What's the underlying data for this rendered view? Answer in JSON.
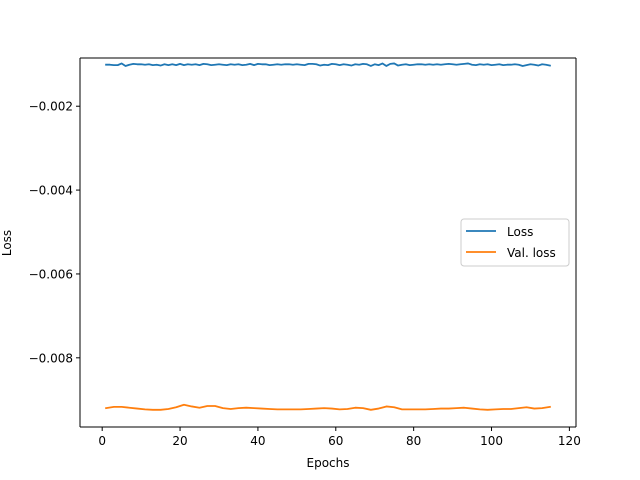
{
  "chart_data": {
    "type": "line",
    "title": "",
    "xlabel": "Epochs",
    "ylabel": "Loss",
    "xlim": [
      -5.7,
      121.7
    ],
    "ylim": [
      -0.00965,
      -0.00085
    ],
    "xticks": [
      0,
      20,
      40,
      60,
      80,
      100,
      120
    ],
    "xtick_labels": [
      "0",
      "20",
      "40",
      "60",
      "80",
      "100",
      "120"
    ],
    "yticks": [
      -0.002,
      -0.004,
      -0.006,
      -0.008
    ],
    "ytick_labels": [
      "−0.002",
      "−0.004",
      "−0.006",
      "−0.008"
    ],
    "grid": false,
    "legend_position": "center-right",
    "series": [
      {
        "name": "Loss",
        "color": "#1f77b4",
        "x": [
          1,
          2,
          3,
          4,
          5,
          6,
          7,
          8,
          9,
          10,
          11,
          12,
          13,
          14,
          15,
          16,
          17,
          18,
          19,
          20,
          21,
          22,
          23,
          24,
          25,
          26,
          27,
          28,
          29,
          30,
          31,
          32,
          33,
          34,
          35,
          36,
          37,
          38,
          39,
          40,
          41,
          42,
          43,
          44,
          45,
          46,
          47,
          48,
          49,
          50,
          51,
          52,
          53,
          54,
          55,
          56,
          57,
          58,
          59,
          60,
          61,
          62,
          63,
          64,
          65,
          66,
          67,
          68,
          69,
          70,
          71,
          72,
          73,
          74,
          75,
          76,
          77,
          78,
          79,
          80,
          81,
          82,
          83,
          84,
          85,
          86,
          87,
          88,
          89,
          90,
          91,
          92,
          93,
          94,
          95,
          96,
          97,
          98,
          99,
          100,
          101,
          102,
          103,
          104,
          105,
          106,
          107,
          108,
          109,
          110,
          111,
          112,
          113,
          114,
          115
        ],
        "y": [
          -0.00101,
          -0.00101,
          -0.00102,
          -0.00102,
          -0.00098,
          -0.00104,
          -0.00101,
          -0.00099,
          -0.001,
          -0.001,
          -0.00101,
          -0.001,
          -0.00102,
          -0.00101,
          -0.00103,
          -0.001,
          -0.00102,
          -0.001,
          -0.00102,
          -0.00099,
          -0.00102,
          -0.001,
          -0.00101,
          -0.001,
          -0.00102,
          -0.00099,
          -0.001,
          -0.00102,
          -0.00101,
          -0.001,
          -0.00101,
          -0.00102,
          -0.001,
          -0.00101,
          -0.001,
          -0.00102,
          -0.00101,
          -0.00099,
          -0.00102,
          -0.00099,
          -0.001,
          -0.001,
          -0.00102,
          -0.00101,
          -0.001,
          -0.00101,
          -0.001,
          -0.001,
          -0.00101,
          -0.001,
          -0.00101,
          -0.00102,
          -0.00099,
          -0.00099,
          -0.001,
          -0.00103,
          -0.00101,
          -0.00102,
          -0.00099,
          -0.001,
          -0.00102,
          -0.001,
          -0.00101,
          -0.00103,
          -0.001,
          -0.00101,
          -0.00099,
          -0.001,
          -0.00104,
          -0.001,
          -0.00102,
          -0.00098,
          -0.00104,
          -0.00099,
          -0.00098,
          -0.00103,
          -0.00101,
          -0.001,
          -0.00102,
          -0.00101,
          -0.001,
          -0.001,
          -0.00101,
          -0.001,
          -0.00101,
          -0.001,
          -0.00101,
          -0.001,
          -0.00099,
          -0.001,
          -0.00101,
          -0.001,
          -0.00099,
          -0.00098,
          -0.00101,
          -0.00102,
          -0.001,
          -0.00101,
          -0.001,
          -0.00102,
          -0.00101,
          -0.001,
          -0.00102,
          -0.00101,
          -0.00101,
          -0.001,
          -0.00101,
          -0.00104,
          -0.00102,
          -0.001,
          -0.00101,
          -0.00103,
          -0.001,
          -0.00101,
          -0.00103
        ]
      },
      {
        "name": "Val. loss",
        "color": "#ff7f0e",
        "x": [
          1,
          3,
          5,
          7,
          9,
          11,
          13,
          15,
          17,
          19,
          21,
          23,
          25,
          27,
          29,
          31,
          33,
          35,
          37,
          39,
          41,
          43,
          45,
          47,
          49,
          51,
          53,
          55,
          57,
          59,
          61,
          63,
          65,
          67,
          69,
          71,
          73,
          75,
          77,
          79,
          81,
          83,
          85,
          87,
          89,
          91,
          93,
          95,
          97,
          99,
          101,
          103,
          105,
          107,
          109,
          111,
          113,
          115
        ],
        "y": [
          -0.0092,
          -0.00917,
          -0.00917,
          -0.00919,
          -0.00921,
          -0.00923,
          -0.00924,
          -0.00924,
          -0.00922,
          -0.00918,
          -0.00912,
          -0.00916,
          -0.00919,
          -0.00915,
          -0.00915,
          -0.0092,
          -0.00922,
          -0.0092,
          -0.00919,
          -0.0092,
          -0.00921,
          -0.00922,
          -0.00923,
          -0.00923,
          -0.00923,
          -0.00923,
          -0.00922,
          -0.00921,
          -0.0092,
          -0.00921,
          -0.00923,
          -0.00922,
          -0.00919,
          -0.0092,
          -0.00924,
          -0.00921,
          -0.00916,
          -0.00918,
          -0.00923,
          -0.00923,
          -0.00923,
          -0.00923,
          -0.00922,
          -0.00921,
          -0.00921,
          -0.0092,
          -0.00919,
          -0.00921,
          -0.00923,
          -0.00924,
          -0.00923,
          -0.00922,
          -0.00922,
          -0.0092,
          -0.00918,
          -0.00921,
          -0.0092,
          -0.00917
        ]
      }
    ]
  }
}
